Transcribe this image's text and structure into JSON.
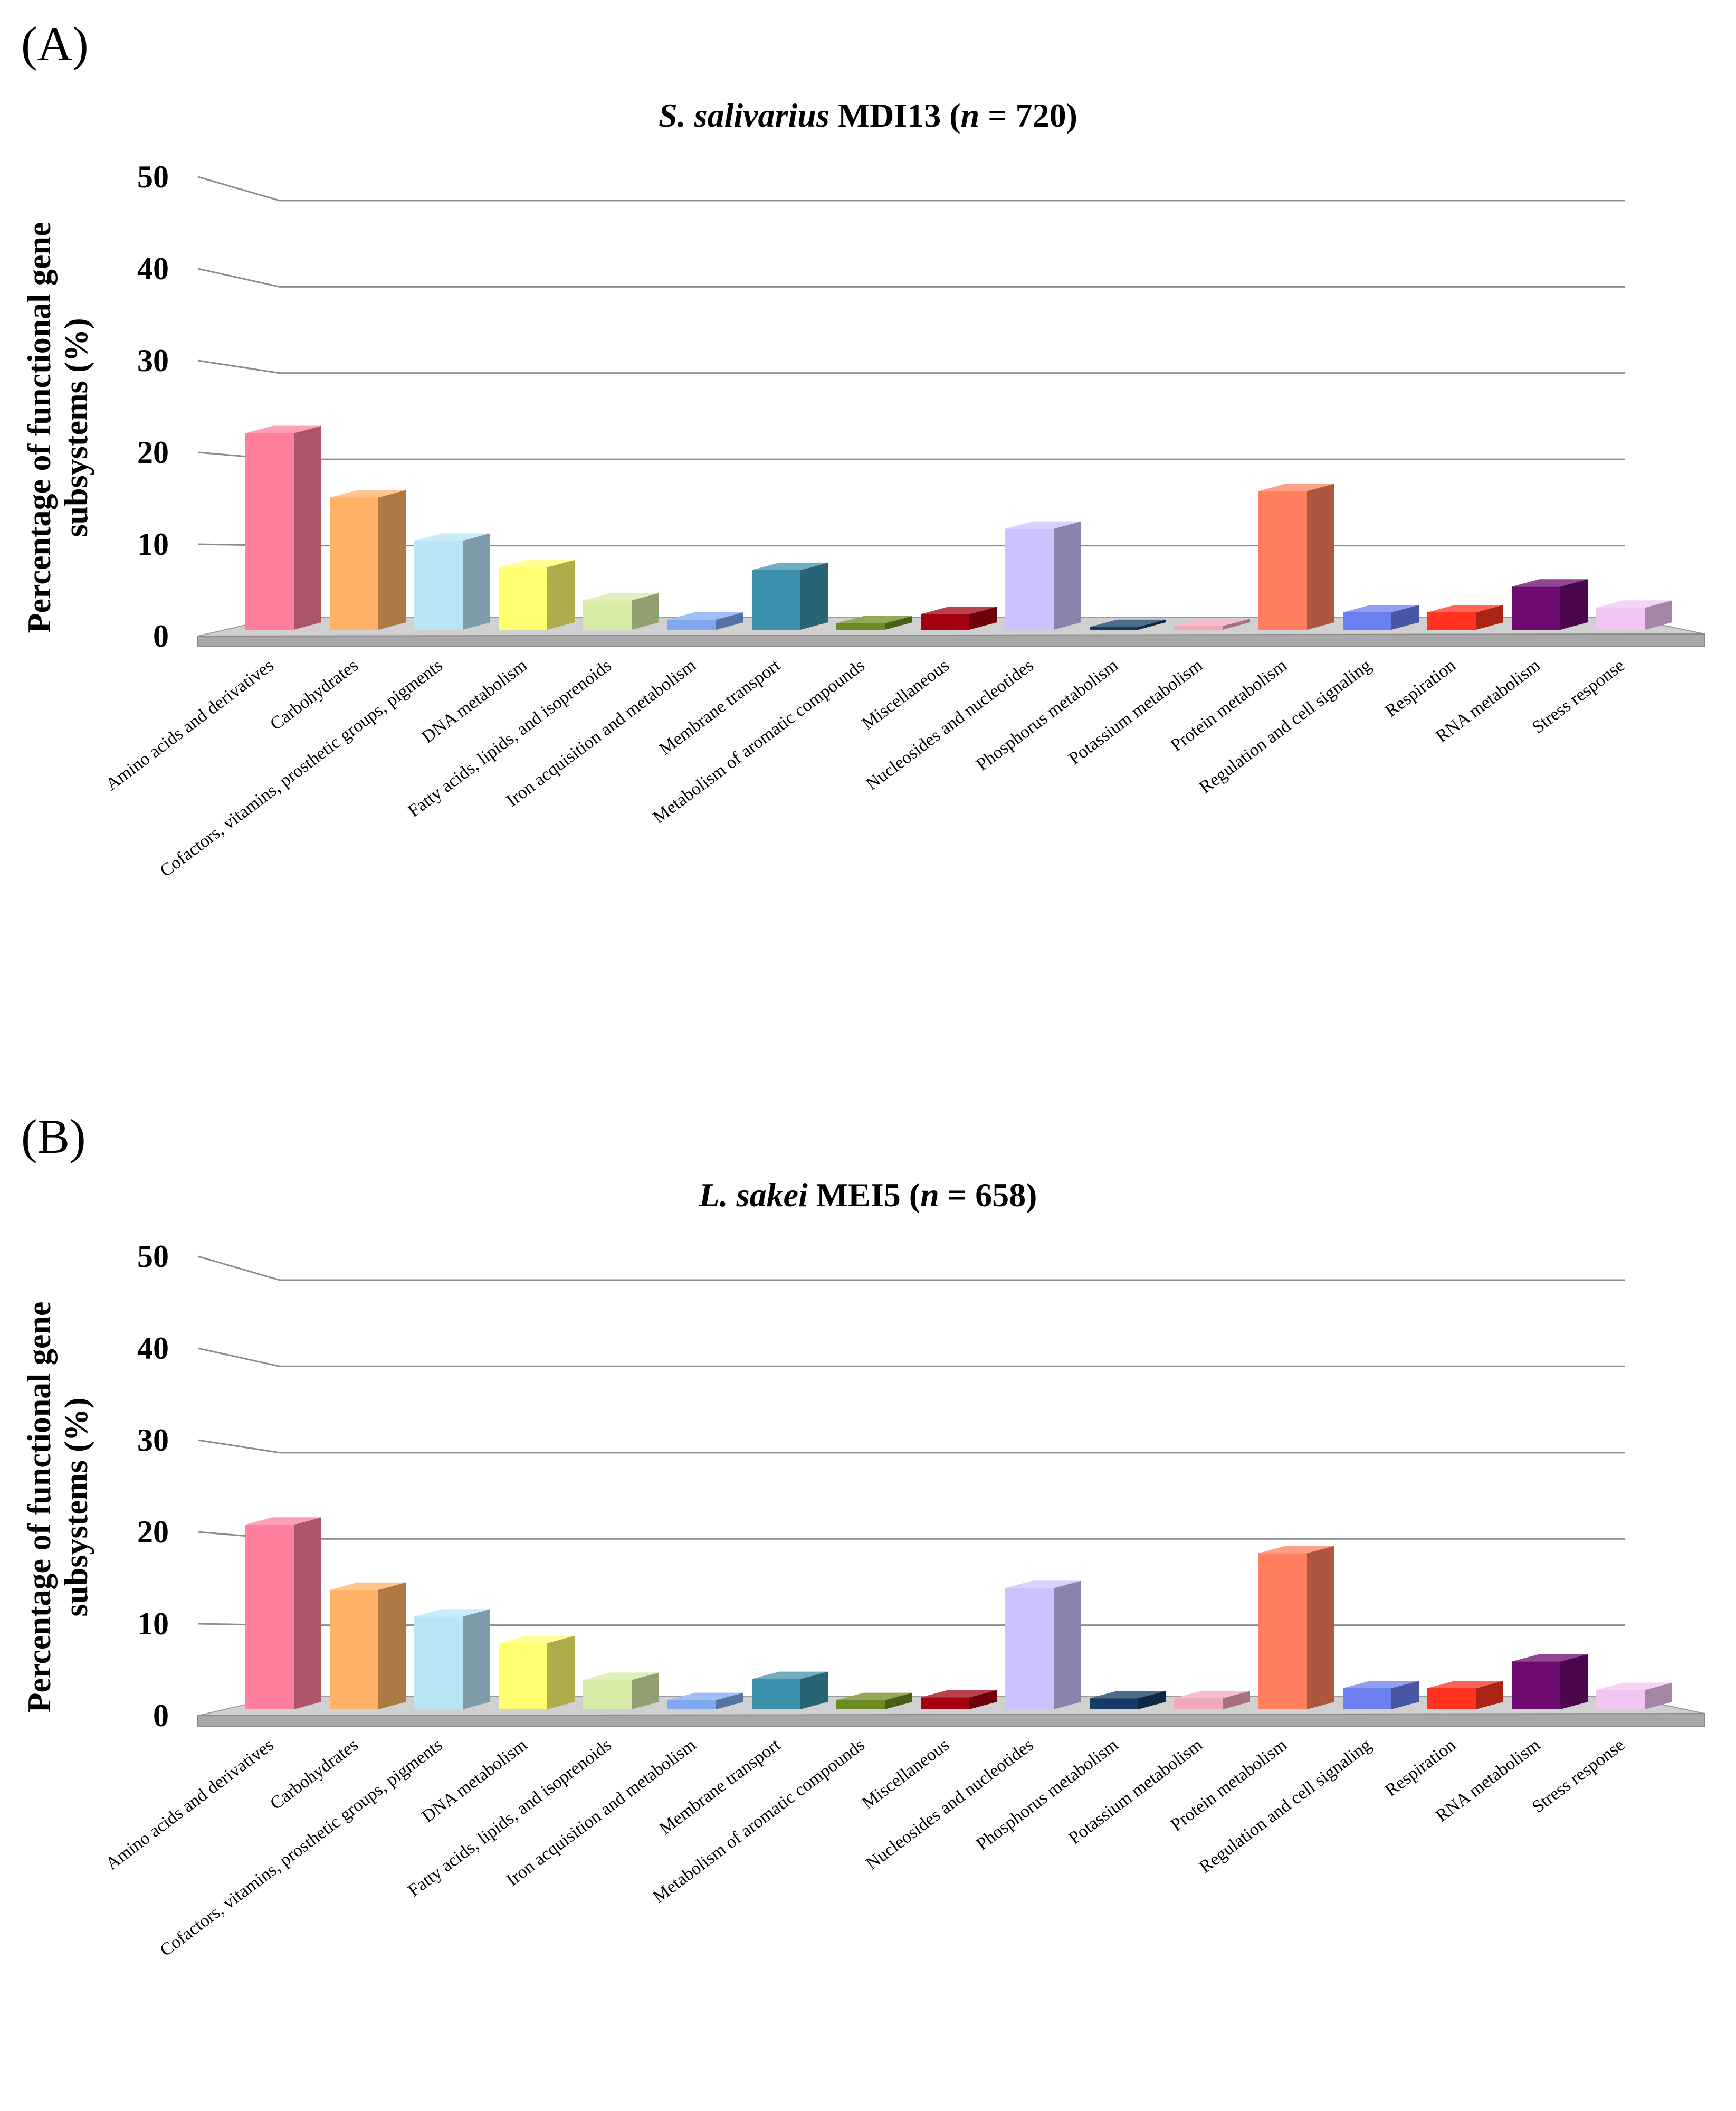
{
  "panels": [
    {
      "label": "(A)",
      "title_italic": "S. salivarius",
      "title_rest": " MDI13 (",
      "title_n": "n",
      "title_end": " = 720)"
    },
    {
      "label": "(B)",
      "title_italic": "L. sakei",
      "title_rest": " MEI5 (",
      "title_n": "n",
      "title_end": " = 658)"
    }
  ],
  "chart_data": [
    {
      "type": "bar",
      "title": "S. salivarius MDI13 (n = 720)",
      "ylabel_line1": "Percentage of functional  gene",
      "ylabel_line2": "subsystems (%)",
      "ylim": [
        0,
        50
      ],
      "yticks": [
        "0",
        "10",
        "20",
        "30",
        "40",
        "50"
      ],
      "categories": [
        "Amino acids and derivatives",
        "Carbohydrates",
        "Cofactors, vitamins, prosthetic groups, pigments",
        "DNA metabolism",
        "Fatty acids, lipids, and isoprenoids",
        "Iron acquisition and metabolism",
        "Membrane transport",
        "Metabolism of aromatic compounds",
        "Miscellaneous",
        "Nucleosides and nucleotides",
        "Phosphorus metabolism",
        "Potassium metabolism",
        "Protein metabolism",
        "Regulation and cell signaling",
        "Respiration",
        "RNA metabolism",
        "Stress response"
      ],
      "values": [
        21.4,
        14.4,
        9.7,
        6.8,
        3.2,
        1.1,
        6.5,
        0.7,
        1.7,
        11.0,
        0.3,
        0.4,
        15.1,
        1.9,
        1.9,
        4.7,
        2.4
      ]
    },
    {
      "type": "bar",
      "title": "L. sakei MEI5 (n = 658)",
      "ylabel_line1": "Percentage of functional  gene",
      "ylabel_line2": "subsystems (%)",
      "ylim": [
        0,
        50
      ],
      "yticks": [
        "0",
        "10",
        "20",
        "30",
        "40",
        "50"
      ],
      "categories": [
        "Amino acids and derivatives",
        "Carbohydrates",
        "Cofactors, vitamins, prosthetic groups, pigments",
        "DNA metabolism",
        "Fatty acids, lipids, and isoprenoids",
        "Iron acquisition and metabolism",
        "Membrane transport",
        "Metabolism of aromatic compounds",
        "Miscellaneous",
        "Nucleosides and nucleotides",
        "Phosphorus metabolism",
        "Potassium metabolism",
        "Protein metabolism",
        "Regulation and cell signaling",
        "Respiration",
        "RNA metabolism",
        "Stress response"
      ],
      "values": [
        20.1,
        13.0,
        10.1,
        7.2,
        3.2,
        1.0,
        3.3,
        1.0,
        1.3,
        13.2,
        1.2,
        1.2,
        17.0,
        2.3,
        2.3,
        5.2,
        2.1
      ]
    }
  ],
  "colors": [
    "#ff7f9c",
    "#ffb266",
    "#b8e6f5",
    "#ffff70",
    "#d6eba6",
    "#7fa8f0",
    "#3d91ad",
    "#6b8c23",
    "#a30010",
    "#cbc2ff",
    "#143a66",
    "#f2a8b8",
    "#ff7f5e",
    "#6b7ff0",
    "#ff3320",
    "#6e0a70",
    "#f2c4f2"
  ]
}
